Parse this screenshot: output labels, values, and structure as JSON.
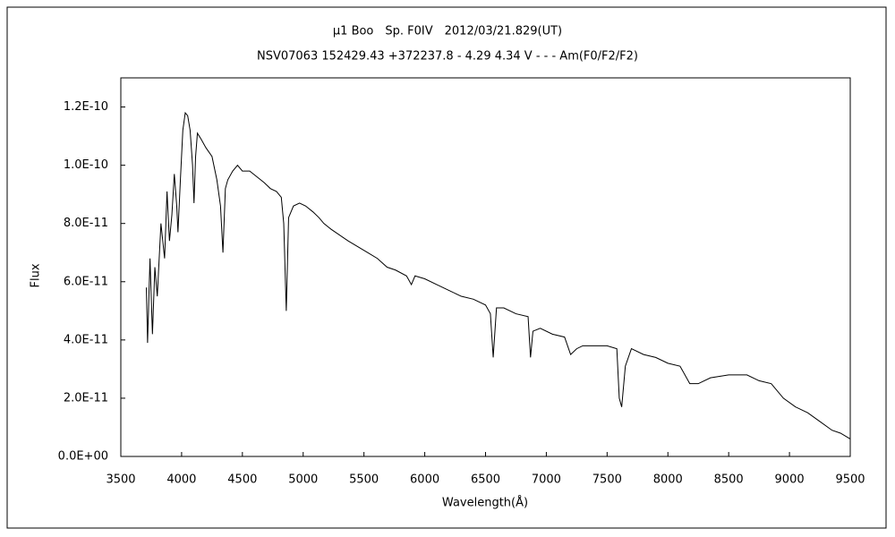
{
  "chart_data": {
    "type": "line",
    "title": "μ1 Boo　Sp. F0IV　2012/03/21.829(UT)",
    "subtitle": "NSV07063 152429.43 +372237.8 - 4.29 4.34 V - - - Am(F0/F2/F2)",
    "x_label": "Wavelength(Å)",
    "y_label": "Flux",
    "color": "#000000",
    "grid": false,
    "xlim": [
      3500,
      9500
    ],
    "xticks": [
      3500,
      4000,
      4500,
      5000,
      5500,
      6000,
      6500,
      7000,
      7500,
      8000,
      8500,
      9000,
      9500
    ],
    "ylim": [
      0,
      1.3e-10
    ],
    "yticks": [
      {
        "value": 0,
        "label": "0.0E+00"
      },
      {
        "value": 2e-11,
        "label": "2.0E-11"
      },
      {
        "value": 4e-11,
        "label": "4.0E-11"
      },
      {
        "value": 6e-11,
        "label": "6.0E-11"
      },
      {
        "value": 8e-11,
        "label": "8.0E-11"
      },
      {
        "value": 1e-10,
        "label": "1.0E-10"
      },
      {
        "value": 1.2e-10,
        "label": "1.2E-10"
      }
    ],
    "x": [
      3710,
      3720,
      3740,
      3760,
      3780,
      3800,
      3830,
      3860,
      3880,
      3900,
      3920,
      3940,
      3960,
      3970,
      3990,
      4010,
      4030,
      4050,
      4070,
      4090,
      4102,
      4115,
      4130,
      4160,
      4200,
      4250,
      4290,
      4320,
      4340,
      4360,
      4380,
      4420,
      4460,
      4500,
      4560,
      4620,
      4680,
      4730,
      4780,
      4820,
      4840,
      4861,
      4880,
      4920,
      4970,
      5020,
      5080,
      5130,
      5170,
      5230,
      5300,
      5370,
      5450,
      5530,
      5610,
      5690,
      5760,
      5850,
      5890,
      5920,
      6000,
      6100,
      6200,
      6300,
      6400,
      6500,
      6540,
      6563,
      6590,
      6650,
      6750,
      6850,
      6870,
      6890,
      6950,
      7050,
      7150,
      7200,
      7250,
      7300,
      7400,
      7500,
      7580,
      7600,
      7620,
      7650,
      7700,
      7800,
      7900,
      8000,
      8100,
      8180,
      8250,
      8350,
      8500,
      8650,
      8750,
      8850,
      8950,
      9050,
      9150,
      9250,
      9350,
      9420,
      9500
    ],
    "values": [
      5.8e-11,
      3.9e-11,
      6.8e-11,
      4.2e-11,
      6.5e-11,
      5.5e-11,
      8e-11,
      6.8e-11,
      9.1e-11,
      7.4e-11,
      8.3e-11,
      9.7e-11,
      8.6e-11,
      7.7e-11,
      9.5e-11,
      1.12e-10,
      1.18e-10,
      1.17e-10,
      1.12e-10,
      1e-10,
      8.7e-11,
      1.03e-10,
      1.11e-10,
      1.09e-10,
      1.06e-10,
      1.03e-10,
      9.5e-11,
      8.6e-11,
      7e-11,
      9.2e-11,
      9.5e-11,
      9.8e-11,
      1e-10,
      9.8e-11,
      9.8e-11,
      9.6e-11,
      9.4e-11,
      9.2e-11,
      9.1e-11,
      8.9e-11,
      8e-11,
      5e-11,
      8.2e-11,
      8.6e-11,
      8.7e-11,
      8.6e-11,
      8.4e-11,
      8.2e-11,
      8e-11,
      7.8e-11,
      7.6e-11,
      7.4e-11,
      7.2e-11,
      7e-11,
      6.8e-11,
      6.5e-11,
      6.4e-11,
      6.2e-11,
      5.9e-11,
      6.2e-11,
      6.1e-11,
      5.9e-11,
      5.7e-11,
      5.5e-11,
      5.4e-11,
      5.2e-11,
      4.9e-11,
      3.4e-11,
      5.1e-11,
      5.1e-11,
      4.9e-11,
      4.8e-11,
      3.4e-11,
      4.3e-11,
      4.4e-11,
      4.2e-11,
      4.1e-11,
      3.5e-11,
      3.7e-11,
      3.8e-11,
      3.8e-11,
      3.8e-11,
      3.7e-11,
      2e-11,
      1.7e-11,
      3.1e-11,
      3.7e-11,
      3.5e-11,
      3.4e-11,
      3.2e-11,
      3.1e-11,
      2.5e-11,
      2.5e-11,
      2.7e-11,
      2.8e-11,
      2.8e-11,
      2.6e-11,
      2.5e-11,
      2e-11,
      1.7e-11,
      1.5e-11,
      1.2e-11,
      9e-12,
      8e-12,
      6e-12
    ]
  }
}
